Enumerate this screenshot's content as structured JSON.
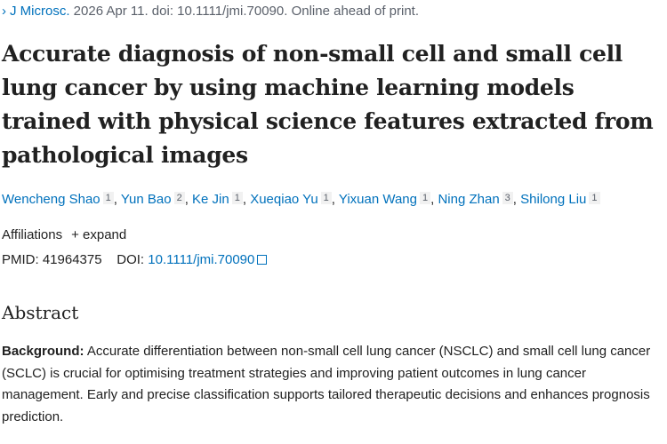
{
  "citation": {
    "journal": "J Microsc.",
    "details": "2026 Apr 11. doi: 10.1111/jmi.70090. Online ahead of print."
  },
  "title": "Accurate diagnosis of non-small cell and small cell lung cancer by using machine learning models trained with physical science features extracted from pathological images",
  "authors": [
    {
      "name": "Wencheng Shao",
      "aff": "1"
    },
    {
      "name": "Yun Bao",
      "aff": "2"
    },
    {
      "name": "Ke Jin",
      "aff": "1"
    },
    {
      "name": "Xueqiao Yu",
      "aff": "1"
    },
    {
      "name": "Yixuan Wang",
      "aff": "1"
    },
    {
      "name": "Ning Zhan",
      "aff": "3"
    },
    {
      "name": "Shilong Liu",
      "aff": "1"
    }
  ],
  "affiliations": {
    "label": "Affiliations",
    "expand": "+ expand"
  },
  "ids": {
    "pmid_label": "PMID:",
    "pmid": "41964375",
    "doi_label": "DOI:",
    "doi": "10.1111/jmi.70090"
  },
  "abstract": {
    "heading": "Abstract",
    "background_label": "Background:",
    "background_text": " Accurate differentiation between non-small cell lung cancer (NSCLC) and small cell lung cancer (SCLC) is crucial for optimising treatment strategies and improving patient outcomes in lung cancer management. Early and precise classification supports tailored therapeutic decisions and enhances prognosis prediction."
  },
  "colors": {
    "link": "#0071bc",
    "text": "#212121",
    "muted": "#5b616b"
  }
}
